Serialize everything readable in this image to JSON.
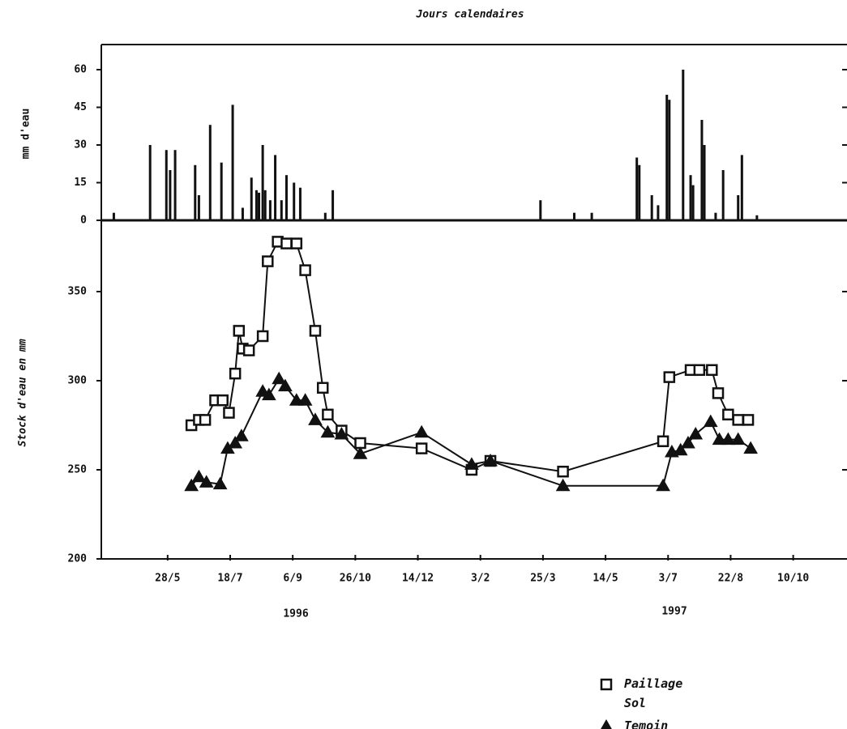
{
  "chart_data": [
    {
      "type": "bar",
      "title": "Jours calendaires",
      "ylabel": "mm d'eau",
      "color": "#111111",
      "xlim": [
        -53,
        543
      ],
      "ylim": [
        0,
        70
      ],
      "yticks": [
        0,
        15,
        30,
        45,
        60
      ],
      "x": [
        -43,
        -14,
        -1,
        2,
        6,
        22,
        25,
        34,
        43,
        52,
        60,
        67,
        71,
        73,
        76,
        78,
        82,
        86,
        91,
        95,
        101,
        106,
        126,
        132,
        298,
        325,
        339,
        375,
        377,
        387,
        392,
        399,
        401,
        412,
        418,
        420,
        427,
        429,
        438,
        444,
        456,
        459,
        471
      ],
      "values": [
        3,
        30,
        28,
        20,
        28,
        22,
        10,
        38,
        23,
        46,
        5,
        17,
        12,
        11,
        30,
        12,
        8,
        26,
        8,
        18,
        15,
        13,
        3,
        12,
        8,
        3,
        3,
        25,
        22,
        10,
        6,
        50,
        48,
        60,
        18,
        14,
        40,
        30,
        3,
        20,
        10,
        26,
        2
      ]
    },
    {
      "type": "line",
      "ylabel": "Stock d'eau en mm",
      "xlim": [
        -53,
        543
      ],
      "ylim": [
        200,
        390
      ],
      "yticks": [
        200,
        250,
        300,
        350
      ],
      "xticks": [
        {
          "value": 0,
          "label": "28/5"
        },
        {
          "value": 50,
          "label": "18/7"
        },
        {
          "value": 100,
          "label": "6/9"
        },
        {
          "value": 150,
          "label": "26/10"
        },
        {
          "value": 200,
          "label": "14/12"
        },
        {
          "value": 250,
          "label": "3/2"
        },
        {
          "value": 300,
          "label": "25/3"
        },
        {
          "value": 350,
          "label": "14/5"
        },
        {
          "value": 400,
          "label": "3/7"
        },
        {
          "value": 450,
          "label": "22/8"
        },
        {
          "value": 500,
          "label": "10/10"
        }
      ],
      "years": [
        "1996",
        "1997"
      ],
      "series": [
        {
          "name": "Paillage Sol",
          "color": "#111111",
          "marker": "square",
          "x": [
            19,
            25,
            30,
            38,
            44,
            49,
            54,
            57,
            60,
            65,
            76,
            80,
            88,
            95,
            103,
            110,
            118,
            124,
            128,
            139,
            154,
            203,
            243,
            258,
            316,
            396,
            401,
            418,
            425,
            435,
            440,
            448,
            456,
            464
          ],
          "values": [
            275,
            278,
            278,
            289,
            289,
            282,
            304,
            328,
            318,
            317,
            325,
            367,
            378,
            377,
            377,
            362,
            328,
            296,
            281,
            272,
            265,
            262,
            250,
            255,
            249,
            266,
            302,
            306,
            306,
            306,
            293,
            281,
            278,
            278
          ]
        },
        {
          "name": "Temoin",
          "color": "#111111",
          "marker": "triangle",
          "x": [
            19,
            25,
            31,
            42,
            48,
            54,
            59,
            76,
            81,
            89,
            94,
            103,
            110,
            118,
            128,
            139,
            154,
            203,
            243,
            258,
            316,
            396,
            403,
            410,
            416,
            422,
            434,
            441,
            448,
            456,
            466
          ],
          "values": [
            241,
            246,
            243,
            242,
            262,
            265,
            269,
            294,
            292,
            301,
            297,
            289,
            289,
            278,
            271,
            270,
            259,
            271,
            253,
            255,
            241,
            241,
            260,
            261,
            265,
            270,
            277,
            267,
            267,
            267,
            262
          ]
        }
      ]
    }
  ]
}
